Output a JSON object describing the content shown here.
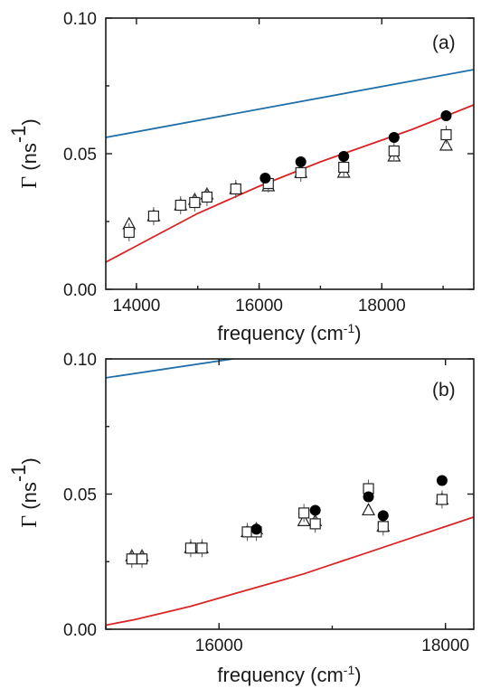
{
  "chart_data": [
    {
      "type": "scatter",
      "panel_label": "(a)",
      "xlabel": "frequency (cm",
      "xlabel_sup": "-1",
      "ylabel_symbol": "Γ",
      "ylabel_unit": " (ns",
      "ylabel_sup": "-1",
      "xlim": [
        13500,
        19500
      ],
      "ylim": [
        0.0,
        0.1
      ],
      "xticks": [
        14000,
        16000,
        18000
      ],
      "xtick_labels": [
        "14000",
        "16000",
        "18000"
      ],
      "yticks": [
        0.0,
        0.05,
        0.1
      ],
      "ytick_labels": [
        "0.00",
        "0.05",
        "0.10"
      ],
      "series": [
        {
          "marker": "circle-filled",
          "points": [
            [
              16100,
              0.041
            ],
            [
              16680,
              0.047
            ],
            [
              17380,
              0.049
            ],
            [
              18200,
              0.056
            ],
            [
              19050,
              0.064
            ]
          ]
        },
        {
          "marker": "square-open",
          "points": [
            [
              13880,
              0.021
            ],
            [
              14280,
              0.027
            ],
            [
              14720,
              0.031
            ],
            [
              14950,
              0.032
            ],
            [
              15150,
              0.034
            ],
            [
              15620,
              0.037
            ],
            [
              16150,
              0.039
            ],
            [
              16680,
              0.043
            ],
            [
              17380,
              0.045
            ],
            [
              18200,
              0.051
            ],
            [
              19050,
              0.057
            ]
          ]
        },
        {
          "marker": "triangle-open",
          "points": [
            [
              13880,
              0.024
            ],
            [
              14280,
              0.027
            ],
            [
              14720,
              0.031
            ],
            [
              14950,
              0.033
            ],
            [
              15150,
              0.035
            ],
            [
              15620,
              0.037
            ],
            [
              16150,
              0.038
            ],
            [
              16680,
              0.043
            ],
            [
              17380,
              0.043
            ],
            [
              18200,
              0.049
            ],
            [
              19050,
              0.053
            ]
          ]
        }
      ],
      "curves": [
        {
          "color": "#1f6fa8",
          "x": [
            13500,
            19500
          ],
          "y": [
            0.056,
            0.081
          ]
        },
        {
          "color": "#d92525",
          "x": [
            13500,
            14000,
            14500,
            15000,
            15500,
            16000,
            16500,
            17000,
            17500,
            18000,
            18500,
            19000,
            19500
          ],
          "y": [
            0.01,
            0.016,
            0.022,
            0.028,
            0.033,
            0.038,
            0.0425,
            0.047,
            0.051,
            0.055,
            0.059,
            0.0635,
            0.068
          ]
        }
      ]
    },
    {
      "type": "scatter",
      "panel_label": "(b)",
      "xlabel": "frequency (cm",
      "xlabel_sup": "-1",
      "ylabel_symbol": "Γ",
      "ylabel_unit": " (ns",
      "ylabel_sup": "-1",
      "xlim": [
        15000,
        18250
      ],
      "ylim": [
        0.0,
        0.1
      ],
      "xticks": [
        16000,
        18000
      ],
      "xtick_labels": [
        "16000",
        "18000"
      ],
      "yticks": [
        0.0,
        0.05,
        0.1
      ],
      "ytick_labels": [
        "0.00",
        "0.05",
        "0.10"
      ],
      "series": [
        {
          "marker": "circle-filled",
          "points": [
            [
              16330,
              0.037
            ],
            [
              16850,
              0.044
            ],
            [
              17320,
              0.049
            ],
            [
              17450,
              0.042
            ],
            [
              17970,
              0.055
            ]
          ]
        },
        {
          "marker": "square-open",
          "points": [
            [
              15230,
              0.026
            ],
            [
              15320,
              0.026
            ],
            [
              15750,
              0.03
            ],
            [
              15850,
              0.03
            ],
            [
              16250,
              0.036
            ],
            [
              16330,
              0.036
            ],
            [
              16750,
              0.043
            ],
            [
              16850,
              0.039
            ],
            [
              17320,
              0.052
            ],
            [
              17450,
              0.038
            ],
            [
              17970,
              0.048
            ]
          ]
        },
        {
          "marker": "triangle-open",
          "points": [
            [
              15230,
              0.027
            ],
            [
              15320,
              0.027
            ],
            [
              15750,
              0.03
            ],
            [
              15850,
              0.03
            ],
            [
              16250,
              0.036
            ],
            [
              16330,
              0.037
            ],
            [
              16750,
              0.04
            ],
            [
              16850,
              0.04
            ],
            [
              17320,
              0.044
            ],
            [
              17450,
              0.038
            ],
            [
              17970,
              0.048
            ]
          ]
        }
      ],
      "curves": [
        {
          "color": "#1f6fa8",
          "x": [
            15000,
            16600
          ],
          "y": [
            0.093,
            0.103
          ]
        },
        {
          "color": "#d92525",
          "x": [
            15000,
            15250,
            15500,
            15750,
            16000,
            16250,
            16500,
            16750,
            17000,
            17250,
            17500,
            17750,
            18000,
            18250
          ],
          "y": [
            0.0015,
            0.0035,
            0.006,
            0.0085,
            0.0115,
            0.0145,
            0.0175,
            0.0205,
            0.024,
            0.0275,
            0.031,
            0.0345,
            0.038,
            0.0415
          ]
        }
      ]
    }
  ]
}
